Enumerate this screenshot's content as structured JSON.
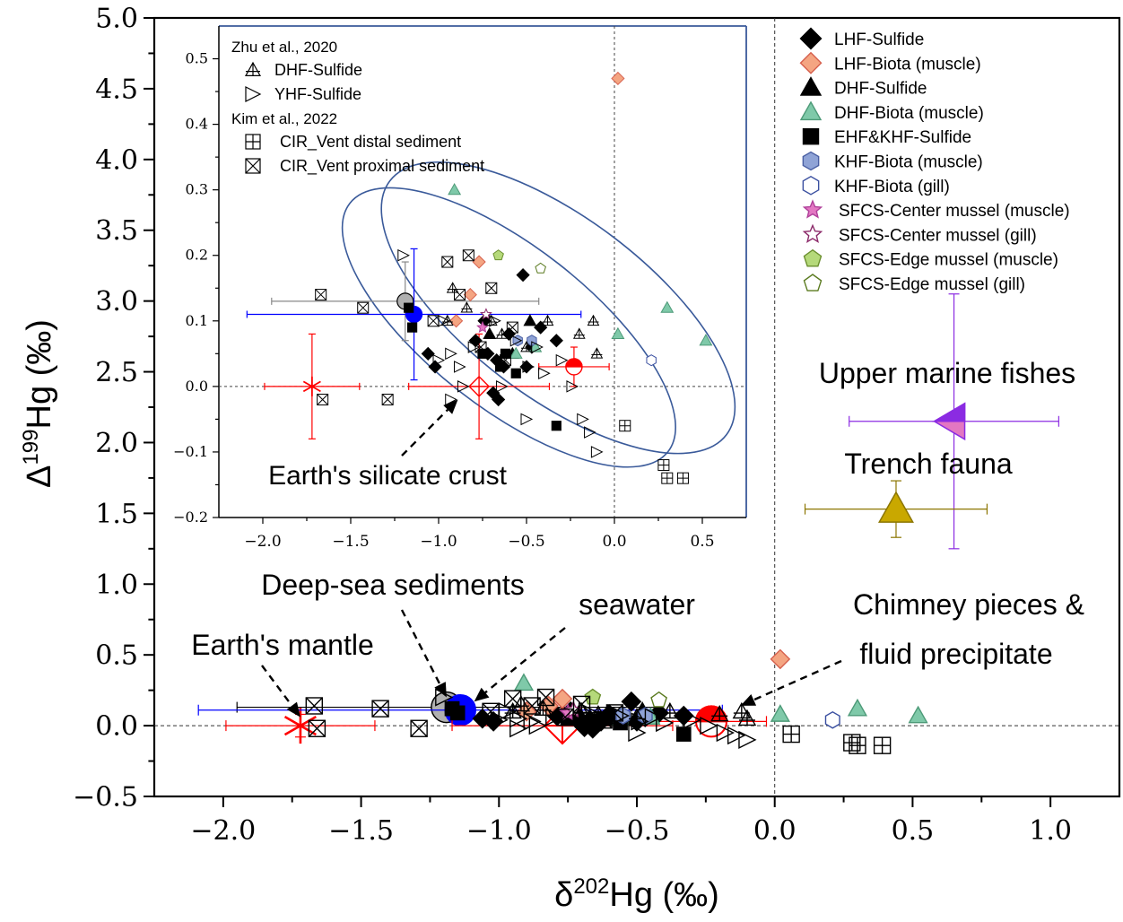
{
  "chart_data": [
    {
      "type": "scatter",
      "role": "main",
      "xlabel_base": "δ",
      "xlabel_sup": "202",
      "xlabel_rest": "Hg (‰)",
      "ylabel_base": "Δ",
      "ylabel_sup": "199",
      "ylabel_rest": "Hg (‰)",
      "xlim": [
        -2.25,
        1.25
      ],
      "ylim": [
        -0.5,
        5.0
      ],
      "xticks": [
        -2.0,
        -1.5,
        -1.0,
        -0.5,
        0.0,
        0.5,
        1.0
      ],
      "xtick_labels": [
        "−2.0",
        "−1.5",
        "−1.0",
        "−0.5",
        "0.0",
        "0.5",
        "1.0"
      ],
      "yticks": [
        -0.5,
        0.0,
        0.5,
        1.0,
        1.5,
        2.0,
        2.5,
        3.0,
        3.5,
        4.0,
        4.5,
        5.0
      ],
      "ytick_labels": [
        "−0.5",
        "0.0",
        "0.5",
        "1.0",
        "1.5",
        "2.0",
        "2.5",
        "3.0",
        "3.5",
        "4.0",
        "4.5",
        "5.0"
      ],
      "legend_placement": "top-right",
      "legend": [
        {
          "label": "LHF-Sulfide",
          "marker": "diamond",
          "fill": "#000000",
          "stroke": "#000000"
        },
        {
          "label": "LHF-Biota (muscle)",
          "marker": "diamond",
          "fill": "#f4a582",
          "stroke": "#d6604d"
        },
        {
          "label": "DHF-Sulfide",
          "marker": "triangle",
          "fill": "#000000",
          "stroke": "#000000"
        },
        {
          "label": "DHF-Biota (muscle)",
          "marker": "triangle",
          "fill": "#7fc9a9",
          "stroke": "#4d9a78"
        },
        {
          "label": "EHF&KHF-Sulfide",
          "marker": "square",
          "fill": "#000000",
          "stroke": "#000000"
        },
        {
          "label": "KHF-Biota (muscle)",
          "marker": "hexagon",
          "fill": "#8fa3d6",
          "stroke": "#4a5fa3"
        },
        {
          "label": "KHF-Biota (gill)",
          "marker": "hexagon",
          "fill": "#ffffff",
          "stroke": "#3a4fa0"
        },
        {
          "label": "SFCS-Center mussel (muscle)",
          "marker": "star",
          "fill": "#e377c2",
          "stroke": "#b0409a"
        },
        {
          "label": "SFCS-Center mussel (gill)",
          "marker": "star",
          "fill": "#ffffff",
          "stroke": "#8c2a6a"
        },
        {
          "label": "SFCS-Edge mussel (muscle)",
          "marker": "pentagon",
          "fill": "#b5d97a",
          "stroke": "#6b8f2f"
        },
        {
          "label": "SFCS-Edge mussel (gill)",
          "marker": "pentagon",
          "fill": "#ffffff",
          "stroke": "#5a7a1f"
        }
      ],
      "series": [
        {
          "name": "LHF-Sulfide",
          "marker": "diamond",
          "fill": "#000000",
          "stroke": "#000000",
          "points": [
            [
              -0.52,
              0.17
            ],
            [
              -0.74,
              0.1
            ],
            [
              -0.79,
              0.07
            ],
            [
              -0.72,
              0.05
            ],
            [
              -0.67,
              0.04
            ],
            [
              -0.63,
              0.03
            ],
            [
              -0.69,
              -0.01
            ],
            [
              -1.06,
              0.05
            ],
            [
              -0.6,
              0.08
            ],
            [
              -0.66,
              -0.02
            ],
            [
              -0.42,
              0.09
            ],
            [
              -0.33,
              0.07
            ],
            [
              -0.5,
              0.03
            ],
            [
              -0.47,
              0.06
            ],
            [
              -1.02,
              0.03
            ]
          ]
        },
        {
          "name": "LHF-Biota (muscle)",
          "marker": "diamond",
          "fill": "#f4a582",
          "stroke": "#d6604d",
          "points": [
            [
              0.02,
              0.47
            ],
            [
              -0.77,
              0.19
            ],
            [
              -0.82,
              0.14
            ],
            [
              -0.9,
              0.1
            ]
          ]
        },
        {
          "name": "DHF-Sulfide",
          "marker": "triangle",
          "fill": "#000000",
          "stroke": "#000000",
          "points": [
            [
              -0.71,
              0.08
            ],
            [
              -0.48,
              0.1
            ],
            [
              -0.58,
              0.05
            ]
          ]
        },
        {
          "name": "DHF-Biota (muscle)",
          "marker": "triangle",
          "fill": "#7fc9a9",
          "stroke": "#4d9a78",
          "points": [
            [
              -0.91,
              0.3
            ],
            [
              0.02,
              0.08
            ],
            [
              0.3,
              0.12
            ],
            [
              0.52,
              0.07
            ],
            [
              -0.56,
              0.05
            ],
            [
              -0.45,
              0.06
            ]
          ]
        },
        {
          "name": "EHF&KHF-Sulfide",
          "marker": "square",
          "fill": "#000000",
          "stroke": "#000000",
          "points": [
            [
              -1.17,
              0.12
            ],
            [
              -1.15,
              0.09
            ],
            [
              -0.33,
              -0.06
            ],
            [
              -0.56,
              0.02
            ],
            [
              -0.65,
              0.03
            ],
            [
              -0.62,
              0.05
            ],
            [
              -0.75,
              0.05
            ]
          ]
        },
        {
          "name": "KHF-Biota (muscle)",
          "marker": "hexagon",
          "fill": "#8fa3d6",
          "stroke": "#4a5fa3",
          "points": [
            [
              -0.55,
              0.07
            ],
            [
              -0.47,
              0.07
            ]
          ]
        },
        {
          "name": "KHF-Biota (gill)",
          "marker": "hexagon",
          "fill": "#ffffff",
          "stroke": "#3a4fa0",
          "points": [
            [
              0.21,
              0.04
            ]
          ]
        },
        {
          "name": "SFCS-Center mussel (muscle)",
          "marker": "star",
          "fill": "#e377c2",
          "stroke": "#b0409a",
          "points": [
            [
              -0.75,
              0.09
            ]
          ]
        },
        {
          "name": "SFCS-Center mussel (gill)",
          "marker": "star",
          "fill": "#ffffff",
          "stroke": "#8c2a6a",
          "points": [
            [
              -0.73,
              0.11
            ]
          ]
        },
        {
          "name": "SFCS-Edge mussel (muscle)",
          "marker": "pentagon",
          "fill": "#b5d97a",
          "stroke": "#6b8f2f",
          "points": [
            [
              -0.66,
              0.2
            ]
          ]
        },
        {
          "name": "SFCS-Edge mussel (gill)",
          "marker": "pentagon",
          "fill": "#ffffff",
          "stroke": "#5a7a1f",
          "points": [
            [
              -0.42,
              0.18
            ]
          ]
        },
        {
          "name": "DHF-Sulfide (Zhu et al., 2020)",
          "marker": "open-triangle-cross",
          "fill": "none",
          "stroke": "#000000",
          "points": [
            [
              -0.92,
              0.15
            ],
            [
              -0.84,
              0.12
            ],
            [
              -0.7,
              0.1
            ],
            [
              -0.64,
              0.08
            ],
            [
              -0.5,
              0.06
            ],
            [
              -0.38,
              0.1
            ],
            [
              -0.2,
              0.08
            ],
            [
              -0.12,
              0.1
            ],
            [
              -0.1,
              0.05
            ],
            [
              -0.95,
              0.1
            ]
          ]
        },
        {
          "name": "YHF-Sulfide (Zhu et al., 2020)",
          "marker": "open-triangle-right",
          "fill": "none",
          "stroke": "#000000",
          "points": [
            [
              -1.2,
              0.2
            ],
            [
              -0.97,
              0.1
            ],
            [
              -0.93,
              0.05
            ],
            [
              -0.88,
              0.03
            ],
            [
              -0.86,
              0.0
            ],
            [
              -0.8,
              0.06
            ],
            [
              -0.68,
              0.1
            ],
            [
              -0.56,
              0.07
            ],
            [
              -0.49,
              0.03
            ],
            [
              -0.44,
              0.06
            ],
            [
              -0.4,
              0.02
            ],
            [
              -0.3,
              0.04
            ],
            [
              -0.24,
              0.0
            ],
            [
              -0.18,
              -0.05
            ],
            [
              -0.14,
              -0.07
            ],
            [
              -0.1,
              -0.1
            ],
            [
              -0.5,
              -0.05
            ],
            [
              -0.64,
              0.0
            ],
            [
              -0.93,
              -0.02
            ],
            [
              -1.0,
              0.04
            ]
          ]
        },
        {
          "name": "CIR_Vent distal sediment (Kim et al., 2022)",
          "marker": "box-plus",
          "fill": "none",
          "stroke": "#000000",
          "points": [
            [
              0.06,
              -0.06
            ],
            [
              0.28,
              -0.12
            ],
            [
              0.3,
              -0.14
            ],
            [
              0.39,
              -0.14
            ]
          ]
        },
        {
          "name": "CIR_Vent proximal sediment (Kim et al., 2022)",
          "marker": "box-x",
          "fill": "none",
          "stroke": "#000000",
          "points": [
            [
              -1.67,
              0.14
            ],
            [
              -1.43,
              0.12
            ],
            [
              -1.29,
              -0.02
            ],
            [
              -1.66,
              -0.02
            ],
            [
              -1.03,
              0.1
            ],
            [
              -0.88,
              0.14
            ],
            [
              -0.83,
              0.2
            ],
            [
              -0.7,
              0.15
            ],
            [
              -0.95,
              0.19
            ],
            [
              -0.58,
              0.09
            ],
            [
              -0.62,
              0.04
            ],
            [
              -0.76,
              0.06
            ]
          ]
        }
      ],
      "reference_points": [
        {
          "name": "Earth's mantle",
          "x": -1.72,
          "y": 0.0,
          "xerr": 0.27,
          "yerr": 0.08,
          "marker": "asterisk",
          "color": "#ff0000"
        },
        {
          "name": "Deep-sea sediments",
          "x": -1.19,
          "y": 0.13,
          "xerr": 0.76,
          "yerr": 0.06,
          "marker": "circle",
          "fill": "#b0b0b0",
          "color": "#000000"
        },
        {
          "name": "seawater",
          "x": -1.14,
          "y": 0.11,
          "xerr": 0.95,
          "yerr": 0.1,
          "marker": "circle",
          "fill": "#0000ff",
          "color": "#0000ff"
        },
        {
          "name": "Earth's silicate crust",
          "x": -0.77,
          "y": 0.0,
          "xerr": 0.4,
          "yerr": 0.08,
          "marker": "open-diamond-cross",
          "color": "#ff0000"
        },
        {
          "name": "Chimney pieces & fluid precipitate",
          "x": -0.23,
          "y": 0.03,
          "xerr": 0.2,
          "yerr": 0.03,
          "marker": "half-circle",
          "fill": "#ff0000",
          "color": "#ff0000"
        },
        {
          "name": "Upper marine fishes",
          "x": 0.65,
          "y": 2.15,
          "xerr": 0.38,
          "yerr": 0.9,
          "marker": "left-triangle",
          "fill": "#8b2be2",
          "fill2": "#e377c2",
          "color": "#8b2be2"
        },
        {
          "name": "Trench fauna",
          "x": 0.44,
          "y": 1.53,
          "xerr": 0.33,
          "yerr": 0.2,
          "marker": "triangle",
          "fill": "#c9a800",
          "color": "#8b7500"
        }
      ],
      "annotations": [
        {
          "text": "Upper marine fishes"
        },
        {
          "text": "Trench fauna"
        },
        {
          "text": "Deep-sea sediments",
          "arrow_to": [
            -1.19,
            0.13
          ]
        },
        {
          "text": "seawater",
          "arrow_to": [
            -1.09,
            0.13
          ]
        },
        {
          "text": "Earth's mantle",
          "arrow_to": [
            -1.72,
            0.05
          ]
        },
        {
          "text": "Chimney pieces &",
          "text2": "fluid precipitate",
          "arrow_to": [
            -0.15,
            0.09
          ]
        }
      ],
      "reference_lines": {
        "x": 0.0,
        "y": 0.0,
        "style": "dashed"
      },
      "grid": false
    },
    {
      "type": "scatter",
      "role": "inset",
      "xlim": [
        -2.25,
        0.75
      ],
      "ylim": [
        -0.2,
        0.55
      ],
      "xticks": [
        -2.0,
        -1.5,
        -1.0,
        -0.5,
        0.0,
        0.5
      ],
      "xtick_labels": [
        "−2.0",
        "−1.5",
        "−1.0",
        "−0.5",
        "0.0",
        "0.5"
      ],
      "yticks": [
        -0.2,
        -0.1,
        0.0,
        0.1,
        0.2,
        0.3,
        0.4,
        0.5
      ],
      "ytick_labels": [
        "−0.2",
        "−0.1",
        "0.0",
        "0.1",
        "0.2",
        "0.3",
        "0.4",
        "0.5"
      ],
      "legend_placement": "top-left",
      "legend_groups": [
        {
          "title": "Zhu et al., 2020",
          "items": [
            {
              "label": "DHF-Sulfide",
              "marker": "open-triangle-cross"
            },
            {
              "label": "YHF-Sulfide",
              "marker": "open-triangle-right"
            }
          ]
        },
        {
          "title": "Kim et al., 2022",
          "items": [
            {
              "label": "CIR_Vent distal sediment",
              "marker": "box-plus"
            },
            {
              "label": "CIR_Vent proximal sediment",
              "marker": "box-x"
            }
          ]
        }
      ],
      "ellipses": [
        {
          "center": [
            -0.6,
            0.09
          ],
          "semi_axes_data": [
            0.85,
            0.1
          ],
          "color": "#3a5a9a"
        },
        {
          "center": [
            -0.32,
            0.12
          ],
          "semi_axes_data": [
            0.9,
            0.1
          ],
          "color": "#3a5a9a"
        }
      ],
      "annotations": [
        {
          "text": "Earth's silicate  crust",
          "arrow_to": [
            -0.88,
            -0.02
          ]
        }
      ],
      "reference_lines": {
        "x": 0.0,
        "y": 0.0,
        "style": "dashed"
      },
      "grid": false
    }
  ]
}
